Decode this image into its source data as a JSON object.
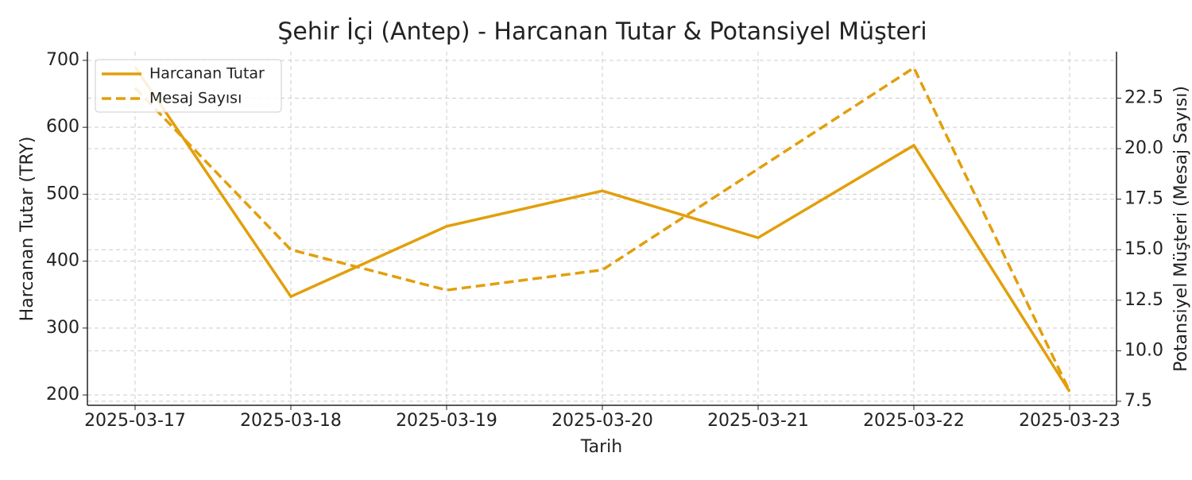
{
  "chart_data": {
    "type": "line",
    "title": "Şehir İçi (Antep) - Harcanan Tutar & Potansiyel Müşteri",
    "x_label": "Tarih",
    "y_label": "Harcanan Tutar (TRY)",
    "y2_label": "Potansiyel Müşteri (Mesaj Sayısı)",
    "categories": [
      "2025-03-17",
      "2025-03-18",
      "2025-03-19",
      "2025-03-20",
      "2025-03-21",
      "2025-03-22",
      "2025-03-23"
    ],
    "series": [
      {
        "name": "Harcanan Tutar",
        "color": "#e29f0c",
        "dash": false,
        "values": [
          690,
          347,
          452,
          505,
          435,
          573,
          205
        ]
      },
      {
        "name": "Mesaj Sayısı",
        "color": "#e29f0c",
        "dash": true,
        "axis": "y2",
        "values": [
          23,
          15,
          13,
          14,
          19,
          24,
          8
        ]
      }
    ],
    "ylim": [
      184.6,
      713
    ],
    "yticks": [
      200,
      300,
      400,
      500,
      600,
      700
    ],
    "y2lim": [
      7.3,
      24.8
    ],
    "y2ticks": [
      7.5,
      {
        "value": 10,
        "label": "10.0"
      },
      12.5,
      {
        "value": 15,
        "label": "15.0"
      },
      17.5,
      {
        "value": 20,
        "label": "20.0"
      },
      22.5
    ],
    "grid": true,
    "legend": "upper-left"
  }
}
